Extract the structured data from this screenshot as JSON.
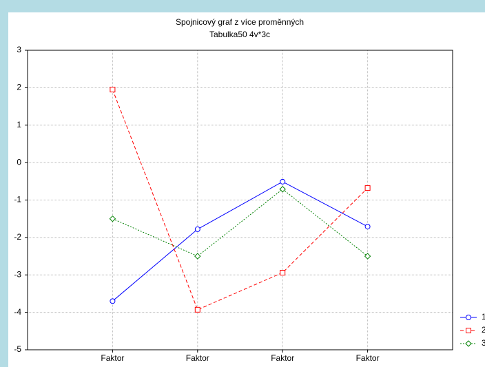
{
  "chart_data": {
    "type": "line",
    "title": "Spojnicový graf z více proměnných",
    "subtitle": "Tabulka50 4v*3c",
    "categories": [
      "Faktor",
      "Faktor",
      "Faktor",
      "Faktor"
    ],
    "series": [
      {
        "name": "1",
        "color": "#0000ff",
        "marker": "circle",
        "dash": "solid",
        "values": [
          -3.7,
          -1.78,
          -0.51,
          -1.71
        ]
      },
      {
        "name": "2",
        "color": "#ff0000",
        "marker": "square",
        "dash": "dashed",
        "values": [
          1.95,
          -3.93,
          -2.94,
          -0.68
        ]
      },
      {
        "name": "3",
        "color": "#008000",
        "marker": "diamond",
        "dash": "dotted",
        "values": [
          -1.5,
          -2.5,
          -0.71,
          -2.5
        ]
      }
    ],
    "ylim": [
      -5,
      3
    ],
    "yticks": [
      -5,
      -4,
      -3,
      -2,
      -1,
      0,
      1,
      2,
      3
    ],
    "grid": true
  }
}
